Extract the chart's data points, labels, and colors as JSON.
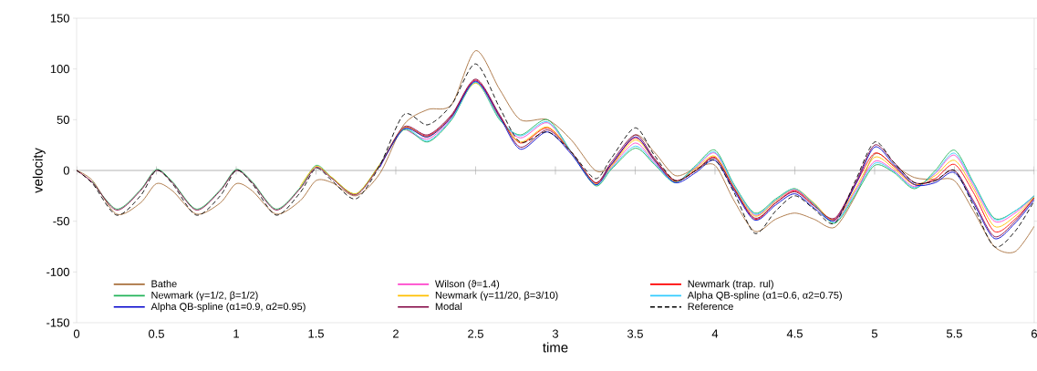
{
  "chart_data": {
    "type": "line",
    "xlabel": "time",
    "ylabel": "velocity",
    "x": [
      0,
      0.1,
      0.25,
      0.4,
      0.5,
      0.6,
      0.75,
      0.9,
      1.0,
      1.1,
      1.25,
      1.4,
      1.5,
      1.6,
      1.75,
      1.9,
      2.05,
      2.2,
      2.35,
      2.5,
      2.65,
      2.78,
      2.95,
      3.1,
      3.25,
      3.35,
      3.5,
      3.62,
      3.75,
      3.88,
      4.0,
      4.12,
      4.25,
      4.38,
      4.5,
      4.62,
      4.75,
      4.88,
      5.0,
      5.12,
      5.25,
      5.38,
      5.5,
      5.62,
      5.75,
      5.88,
      6.0
    ],
    "xlim": [
      0,
      6
    ],
    "xticks": [
      0,
      0.5,
      1,
      1.5,
      2,
      2.5,
      3,
      3.5,
      4,
      4.5,
      5,
      5.5,
      6
    ],
    "ylim": [
      -150,
      150
    ],
    "yticks": [
      -150,
      -100,
      -50,
      0,
      50,
      100,
      150
    ],
    "legend": "bottom",
    "marker": "none",
    "line_style": "solid",
    "series": [
      {
        "name": "Bathe",
        "color": "#a8703c",
        "values": [
          0,
          -10,
          -43,
          -32,
          -13,
          -20,
          -43,
          -32,
          -13,
          -20,
          -43,
          -30,
          -10,
          -12,
          -25,
          -3,
          45,
          60,
          65,
          118,
          80,
          50,
          50,
          30,
          0,
          5,
          35,
          18,
          -5,
          2,
          5,
          -30,
          -60,
          -48,
          -42,
          -48,
          -56,
          -25,
          16,
          5,
          -7,
          -9,
          -10,
          -40,
          -75,
          -80,
          -55
        ]
      },
      {
        "name": "Wilson (ϑ=1.4)",
        "color": "#ff44cc",
        "values": [
          null,
          null,
          null,
          null,
          null,
          null,
          null,
          null,
          null,
          null,
          null,
          null,
          null,
          null,
          null,
          null,
          42,
          31,
          52,
          88,
          52,
          32,
          47,
          18,
          -13,
          3,
          27,
          8,
          -11,
          3,
          17,
          -16,
          -44,
          -30,
          -19,
          -33,
          -50,
          -20,
          9,
          0,
          -16,
          -3,
          15,
          -15,
          -50,
          -42,
          -25
        ]
      },
      {
        "name": "Newmark (trap. rul)",
        "color": "#ff0000",
        "values": [
          null,
          null,
          null,
          null,
          null,
          null,
          null,
          null,
          null,
          null,
          null,
          null,
          null,
          null,
          null,
          5,
          42,
          34,
          54,
          89,
          54,
          27,
          42,
          18,
          -12,
          6,
          32,
          11,
          -10,
          0,
          13,
          -18,
          -48,
          -32,
          -20,
          -34,
          -48,
          -14,
          17,
          4,
          -14,
          -8,
          6,
          -22,
          -60,
          -48,
          -27
        ]
      },
      {
        "name": "Newmark (γ=1/2, β=1/2)",
        "color": "#22b359",
        "values": [
          null,
          -11,
          -38,
          -19,
          1,
          -11,
          -38,
          -19,
          1,
          -11,
          -38,
          -17,
          5,
          -7,
          -23,
          6,
          40,
          28,
          50,
          87,
          50,
          35,
          50,
          18,
          -15,
          1,
          22,
          6,
          -12,
          5,
          20,
          -14,
          -42,
          -28,
          -18,
          -33,
          -52,
          -24,
          5,
          -2,
          -18,
          0,
          20,
          -12,
          -47,
          -40,
          -25
        ]
      },
      {
        "name": "Newmark (γ=11/20, β=3/10)",
        "color": "#ffc000",
        "values": [
          null,
          null,
          null,
          null,
          null,
          null,
          null,
          null,
          null,
          null,
          null,
          -16,
          4,
          -7,
          -23,
          6,
          42,
          33,
          53,
          86,
          52,
          28,
          43,
          18,
          -13,
          4,
          30,
          10,
          -11,
          2,
          14,
          -17,
          -45,
          -30,
          -18,
          -32,
          -49,
          -18,
          13,
          2,
          -14,
          -5,
          10,
          -18,
          -55,
          -45,
          -26
        ]
      },
      {
        "name": "Alpha QB-spline (α1=0.6, α2=0.75)",
        "color": "#33ccff",
        "values": [
          null,
          null,
          null,
          null,
          null,
          null,
          null,
          null,
          null,
          null,
          null,
          null,
          null,
          null,
          null,
          5,
          41,
          29,
          51,
          87,
          51,
          34,
          48,
          18,
          -14,
          2,
          24,
          7,
          -12,
          4,
          18,
          -15,
          -43,
          -29,
          -18,
          -33,
          -51,
          -22,
          7,
          -1,
          -17,
          -2,
          17,
          -13,
          -48,
          -40,
          -25
        ]
      },
      {
        "name": "Alpha QB-spline (α1=0.9, α2=0.95)",
        "color": "#0000cc",
        "values": [
          null,
          null,
          null,
          null,
          null,
          null,
          null,
          null,
          null,
          null,
          null,
          null,
          null,
          null,
          null,
          3,
          41,
          33,
          53,
          88,
          53,
          21,
          38,
          16,
          -14,
          6,
          33,
          10,
          -12,
          -2,
          10,
          -20,
          -49,
          -34,
          -23,
          -37,
          -49,
          -14,
          23,
          6,
          -14,
          -12,
          -2,
          -32,
          -67,
          -52,
          -29
        ]
      },
      {
        "name": "Modal",
        "color": "#800040",
        "values": [
          0,
          -12,
          -39,
          -20,
          0,
          -12,
          -39,
          -20,
          0,
          -12,
          -39,
          -18,
          3,
          -8,
          -24,
          5,
          43,
          35,
          55,
          90,
          55,
          23,
          40,
          18,
          -12,
          8,
          35,
          12,
          -10,
          0,
          12,
          -18,
          -47,
          -32,
          -21,
          -35,
          -47,
          -12,
          25,
          8,
          -12,
          -10,
          0,
          -30,
          -65,
          -50,
          -27
        ]
      },
      {
        "name": "Reference",
        "color": "#000000",
        "line_style": "dashed",
        "values": [
          0,
          -13,
          -44,
          -25,
          0,
          -13,
          -44,
          -25,
          0,
          -13,
          -44,
          -22,
          2,
          -10,
          -28,
          5,
          55,
          45,
          65,
          105,
          62,
          28,
          38,
          18,
          -8,
          12,
          42,
          15,
          -10,
          0,
          10,
          -22,
          -62,
          -40,
          -25,
          -38,
          -52,
          -10,
          28,
          8,
          -12,
          -10,
          0,
          -35,
          -75,
          -60,
          -30
        ]
      }
    ]
  }
}
